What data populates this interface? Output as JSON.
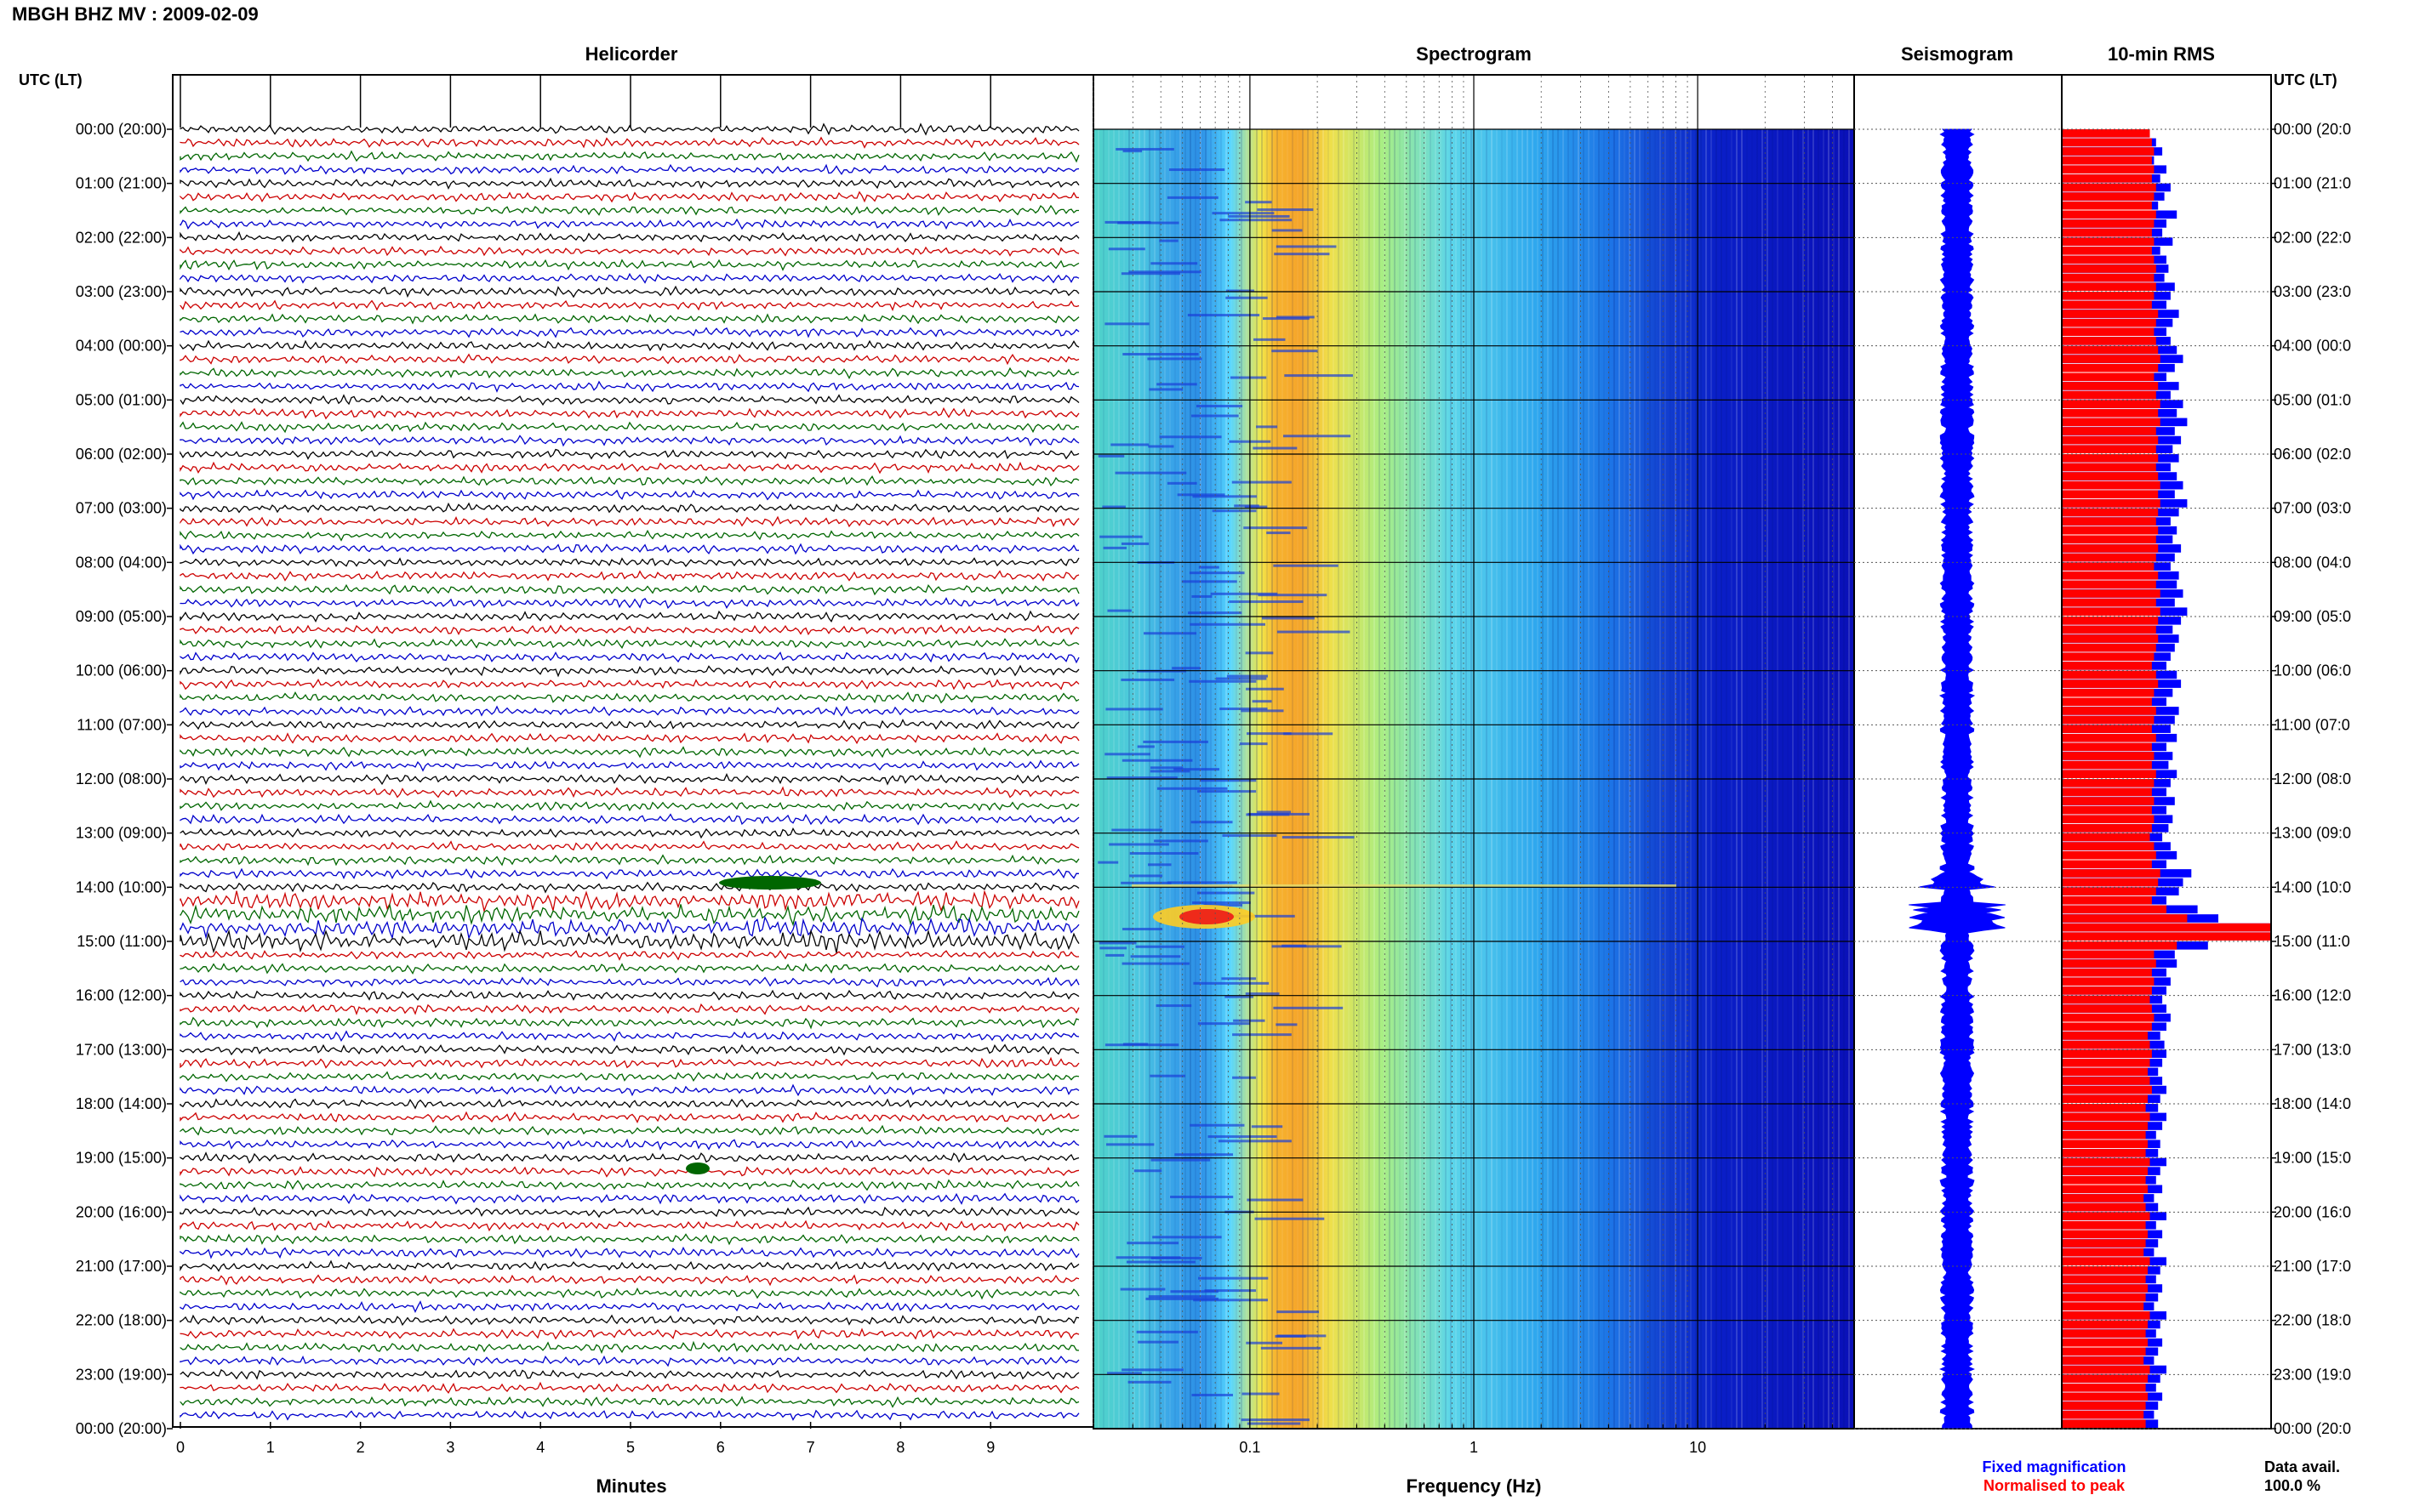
{
  "header": {
    "title": "MBGH BHZ MV : 2009-02-09"
  },
  "panels": {
    "helicorder": "Helicorder",
    "spectrogram": "Spectrogram",
    "seismogram": "Seismogram",
    "rms": "10-min RMS"
  },
  "axis_labels": {
    "left_time": "UTC (LT)",
    "right_time": "UTC (LT)",
    "minutes": "Minutes",
    "frequency": "Frequency (Hz)"
  },
  "legend": {
    "fixed": "Fixed magnification",
    "normalised": "Normalised to peak"
  },
  "data_avail": {
    "label": "Data avail.",
    "value": "100.0 %"
  },
  "colors": {
    "helicorder_traces": [
      "#000000",
      "#cc0000",
      "#006600",
      "#0000cc"
    ],
    "rms_fixed": "#0000ff",
    "rms_normalised": "#ff0000",
    "seismogram": "#0000ff",
    "legend_fixed": "#0000ff",
    "legend_normalised": "#ff0000"
  },
  "chart_data": {
    "type": "heatmap",
    "time_ticks_left": [
      "00:00 (20:00)",
      "01:00 (21:00)",
      "02:00 (22:00)",
      "03:00 (23:00)",
      "04:00 (00:00)",
      "05:00 (01:00)",
      "06:00 (02:00)",
      "07:00 (03:00)",
      "08:00 (04:00)",
      "09:00 (05:00)",
      "10:00 (06:00)",
      "11:00 (07:00)",
      "12:00 (08:00)",
      "13:00 (09:00)",
      "14:00 (10:00)",
      "15:00 (11:00)",
      "16:00 (12:00)",
      "17:00 (13:00)",
      "18:00 (14:00)",
      "19:00 (15:00)",
      "20:00 (16:00)",
      "21:00 (17:00)",
      "22:00 (18:00)",
      "23:00 (19:00)",
      "00:00 (20:00)"
    ],
    "time_ticks_right": [
      "00:00 (20:0",
      "01:00 (21:0",
      "02:00 (22:0",
      "03:00 (23:0",
      "04:00 (00:0",
      "05:00 (01:0",
      "06:00 (02:0",
      "07:00 (03:0",
      "08:00 (04:0",
      "09:00 (05:0",
      "10:00 (06:0",
      "11:00 (07:0",
      "12:00 (08:0",
      "13:00 (09:0",
      "14:00 (10:0",
      "15:00 (11:0",
      "16:00 (12:0",
      "17:00 (13:0",
      "18:00 (14:0",
      "19:00 (15:0",
      "20:00 (16:0",
      "21:00 (17:0",
      "22:00 (18:0",
      "23:00 (19:0",
      "00:00 (20:0"
    ],
    "minute_ticks": [
      "0",
      "1",
      "2",
      "3",
      "4",
      "5",
      "6",
      "7",
      "8",
      "9"
    ],
    "xlim_minutes": [
      0,
      10
    ],
    "frequency_ticks": [
      "0.1",
      "1",
      "10"
    ],
    "frequency_scale": "log",
    "xlim_frequency": [
      0.02,
      50
    ],
    "rms_fixed": [
      0.42,
      0.45,
      0.48,
      0.44,
      0.5,
      0.47,
      0.52,
      0.49,
      0.46,
      0.55,
      0.5,
      0.48,
      0.53,
      0.47,
      0.5,
      0.51,
      0.49,
      0.54,
      0.52,
      0.5,
      0.56,
      0.53,
      0.5,
      0.52,
      0.55,
      0.58,
      0.54,
      0.5,
      0.56,
      0.52,
      0.58,
      0.55,
      0.6,
      0.54,
      0.57,
      0.53,
      0.56,
      0.52,
      0.55,
      0.58,
      0.54,
      0.6,
      0.56,
      0.52,
      0.55,
      0.53,
      0.57,
      0.54,
      0.52,
      0.56,
      0.55,
      0.58,
      0.54,
      0.6,
      0.57,
      0.53,
      0.56,
      0.54,
      0.52,
      0.5,
      0.55,
      0.57,
      0.53,
      0.5,
      0.56,
      0.54,
      0.52,
      0.55,
      0.5,
      0.53,
      0.51,
      0.55,
      0.52,
      0.5,
      0.54,
      0.5,
      0.53,
      0.51,
      0.48,
      0.52,
      0.55,
      0.5,
      0.62,
      0.58,
      0.56,
      0.5,
      0.65,
      0.75,
      1.0,
      1.0,
      0.7,
      0.54,
      0.55,
      0.5,
      0.52,
      0.5,
      0.48,
      0.5,
      0.52,
      0.5,
      0.47,
      0.49,
      0.5,
      0.48,
      0.46,
      0.48,
      0.5,
      0.47,
      0.46,
      0.5,
      0.48,
      0.45,
      0.47,
      0.46,
      0.5,
      0.47,
      0.45,
      0.48,
      0.44,
      0.46,
      0.5,
      0.45,
      0.48,
      0.46,
      0.44,
      0.5,
      0.47,
      0.45,
      0.48,
      0.46,
      0.44,
      0.5,
      0.47,
      0.45,
      0.48,
      0.46,
      0.44,
      0.5,
      0.47,
      0.45,
      0.48,
      0.46,
      0.44,
      0.46
    ],
    "rms_normalised": [
      0.42,
      0.43,
      0.44,
      0.43,
      0.44,
      0.43,
      0.45,
      0.44,
      0.43,
      0.45,
      0.44,
      0.43,
      0.44,
      0.43,
      0.44,
      0.45,
      0.44,
      0.45,
      0.44,
      0.43,
      0.46,
      0.45,
      0.44,
      0.45,
      0.46,
      0.47,
      0.46,
      0.44,
      0.46,
      0.45,
      0.47,
      0.46,
      0.47,
      0.45,
      0.46,
      0.45,
      0.46,
      0.45,
      0.46,
      0.47,
      0.46,
      0.47,
      0.46,
      0.45,
      0.46,
      0.45,
      0.46,
      0.45,
      0.44,
      0.46,
      0.45,
      0.47,
      0.45,
      0.47,
      0.46,
      0.45,
      0.46,
      0.45,
      0.44,
      0.43,
      0.45,
      0.46,
      0.44,
      0.43,
      0.45,
      0.44,
      0.43,
      0.45,
      0.43,
      0.44,
      0.43,
      0.45,
      0.44,
      0.43,
      0.44,
      0.43,
      0.44,
      0.43,
      0.42,
      0.44,
      0.45,
      0.43,
      0.47,
      0.46,
      0.45,
      0.43,
      0.5,
      0.6,
      1.0,
      1.0,
      0.55,
      0.44,
      0.45,
      0.43,
      0.44,
      0.43,
      0.42,
      0.43,
      0.44,
      0.43,
      0.41,
      0.42,
      0.43,
      0.42,
      0.41,
      0.42,
      0.43,
      0.41,
      0.4,
      0.42,
      0.41,
      0.4,
      0.41,
      0.4,
      0.42,
      0.41,
      0.4,
      0.41,
      0.39,
      0.4,
      0.42,
      0.4,
      0.41,
      0.4,
      0.39,
      0.42,
      0.41,
      0.4,
      0.41,
      0.4,
      0.39,
      0.42,
      0.41,
      0.4,
      0.41,
      0.4,
      0.39,
      0.42,
      0.41,
      0.4,
      0.41,
      0.4,
      0.39,
      0.4
    ]
  }
}
